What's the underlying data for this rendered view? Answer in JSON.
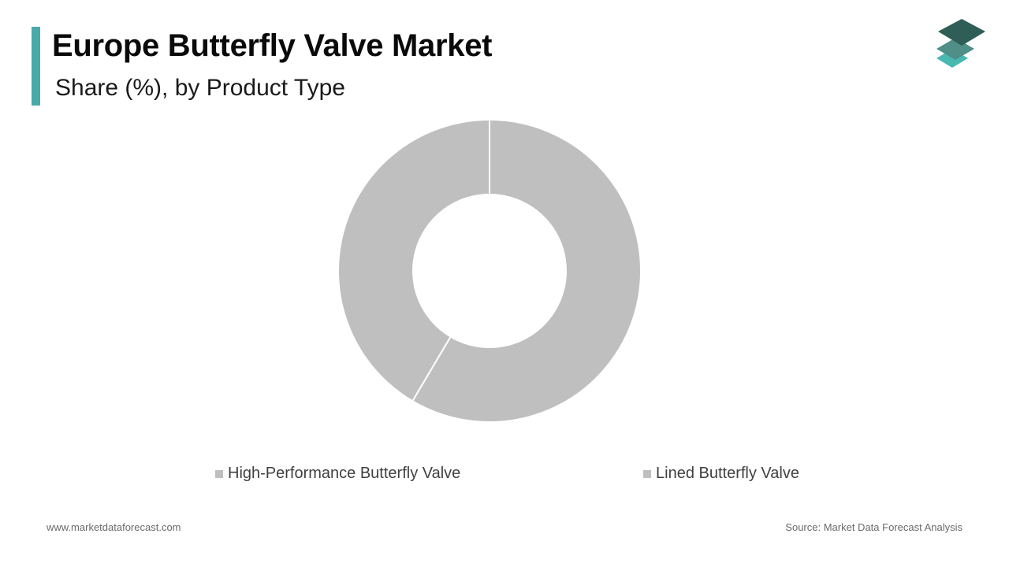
{
  "header": {
    "title": "Europe Butterfly Valve Market",
    "subtitle": "Share (%), by Product Type"
  },
  "colors": {
    "accent": "#4aa9a9",
    "slice": "#bfbfbf",
    "logo_top": "#2e5e55",
    "logo_mid": "#4f8f87",
    "logo_bottom": "#49b8b1"
  },
  "chart_data": {
    "type": "pie",
    "donut": true,
    "categories": [
      "High-Performance Butterfly Valve",
      "Lined Butterfly Valve"
    ],
    "values": [
      58.5,
      41.5
    ],
    "legend_position": "bottom"
  },
  "footer": {
    "website": "www.marketdataforecast.com",
    "source": "Source: Market Data Forecast Analysis"
  }
}
